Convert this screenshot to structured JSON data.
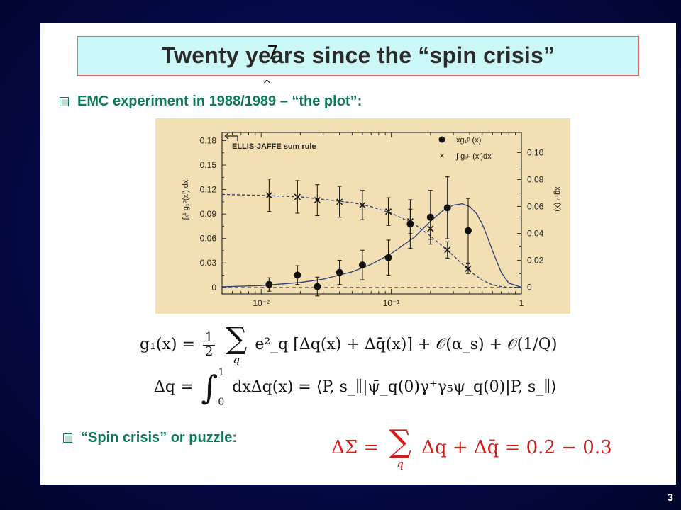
{
  "slide": {
    "title": "Twenty years since the “spin crisis”",
    "stray_mark_top": "7",
    "stray_mark_bottom": "^",
    "bullet1": "EMC experiment in 1988/1989 – “the plot”:",
    "bullet2": "“Spin crisis” or puzzle:",
    "page_number": "3"
  },
  "formulas": {
    "g1_lhs": "g₁(x) = ",
    "g1_frac_num": "1",
    "g1_frac_den": "2",
    "g1_sum_index": "q",
    "g1_rhs": "e²_q [Δq(x) + Δq̄(x)] + 𝒪(α_s) + 𝒪(1/Q)",
    "dq_lhs": "Δq = ",
    "dq_int_upper": "1",
    "dq_int_lower": "0",
    "dq_rhs": "dxΔq(x) = ⟨P, s_∥|ψ̄_q(0)γ⁺γ₅ψ_q(0)|P, s_∥⟩",
    "spin_lhs": "ΔΣ = ",
    "spin_sum_index": "q",
    "spin_rhs": "Δq + Δq̄ = 0.2 − 0.3"
  },
  "chart_data": {
    "type": "scatter",
    "annotation": "ELLIS-JAFFE sum rule",
    "xscale": "log",
    "xlim": [
      0.005,
      1
    ],
    "x_tick_labels": [
      "10⁻²",
      "10⁻¹",
      "1"
    ],
    "left_axis": {
      "label": "∫ₓ¹ g₁ᵖ(x′) dx′",
      "ylim": [
        -0.008,
        0.19
      ],
      "tick_labels": [
        "0",
        "0.03",
        "0.06",
        "0.09",
        "0.12",
        "0.15",
        "0.18"
      ]
    },
    "right_axis": {
      "label": "xg₁ᵖ (x)",
      "ylim": [
        -0.005,
        0.115
      ],
      "tick_labels": [
        "0",
        "0.02",
        "0.04",
        "0.06",
        "0.08",
        "0.10"
      ]
    },
    "legend": {
      "placement": "top-right",
      "entries": [
        "xg₁ᵖ (x)",
        "∫ g₁ᵖ (x′)dx′"
      ]
    },
    "series": [
      {
        "name": "xg₁ᵖ (x)",
        "marker": "filled-circle",
        "axis": "right",
        "x": [
          0.0115,
          0.019,
          0.027,
          0.04,
          0.06,
          0.095,
          0.14,
          0.2,
          0.27,
          0.39
        ],
        "y": [
          0.002,
          0.009,
          0.0005,
          0.011,
          0.0165,
          0.022,
          0.047,
          0.052,
          0.059,
          0.042
        ],
        "err": [
          0.005,
          0.007,
          0.007,
          0.009,
          0.011,
          0.013,
          0.018,
          0.02,
          0.023,
          0.024
        ]
      },
      {
        "name": "∫ g₁ᵖ (x′)dx′",
        "marker": "cross",
        "axis": "left",
        "x": [
          0.0115,
          0.019,
          0.027,
          0.04,
          0.06,
          0.095,
          0.14,
          0.2,
          0.27,
          0.39
        ],
        "y": [
          0.113,
          0.111,
          0.107,
          0.105,
          0.101,
          0.093,
          0.081,
          0.072,
          0.046,
          0.023
        ],
        "err": [
          0.02,
          0.02,
          0.019,
          0.019,
          0.018,
          0.017,
          0.015,
          0.013,
          0.01,
          0.006
        ]
      },
      {
        "name": "xg₁ᵖ fit",
        "style": "solid",
        "axis": "right",
        "x": [
          0.005,
          0.01,
          0.02,
          0.03,
          0.05,
          0.07,
          0.1,
          0.15,
          0.2,
          0.25,
          0.3,
          0.35,
          0.4,
          0.45,
          0.5,
          0.55,
          0.6,
          0.7,
          0.8,
          1.0
        ],
        "y": [
          0.0003,
          0.0012,
          0.0035,
          0.006,
          0.0115,
          0.017,
          0.025,
          0.037,
          0.049,
          0.057,
          0.061,
          0.062,
          0.06,
          0.055,
          0.047,
          0.037,
          0.027,
          0.011,
          0.003,
          0.0
        ]
      },
      {
        "name": "integral fit",
        "style": "dashed",
        "axis": "left",
        "x": [
          0.005,
          0.01,
          0.02,
          0.03,
          0.05,
          0.07,
          0.1,
          0.15,
          0.2,
          0.25,
          0.3,
          0.35,
          0.4,
          0.5,
          0.6,
          0.7,
          0.8,
          1.0
        ],
        "y": [
          0.114,
          0.113,
          0.111,
          0.108,
          0.104,
          0.099,
          0.091,
          0.078,
          0.063,
          0.05,
          0.039,
          0.029,
          0.02,
          0.009,
          0.003,
          0.001,
          0.0002,
          0.0
        ]
      }
    ]
  }
}
